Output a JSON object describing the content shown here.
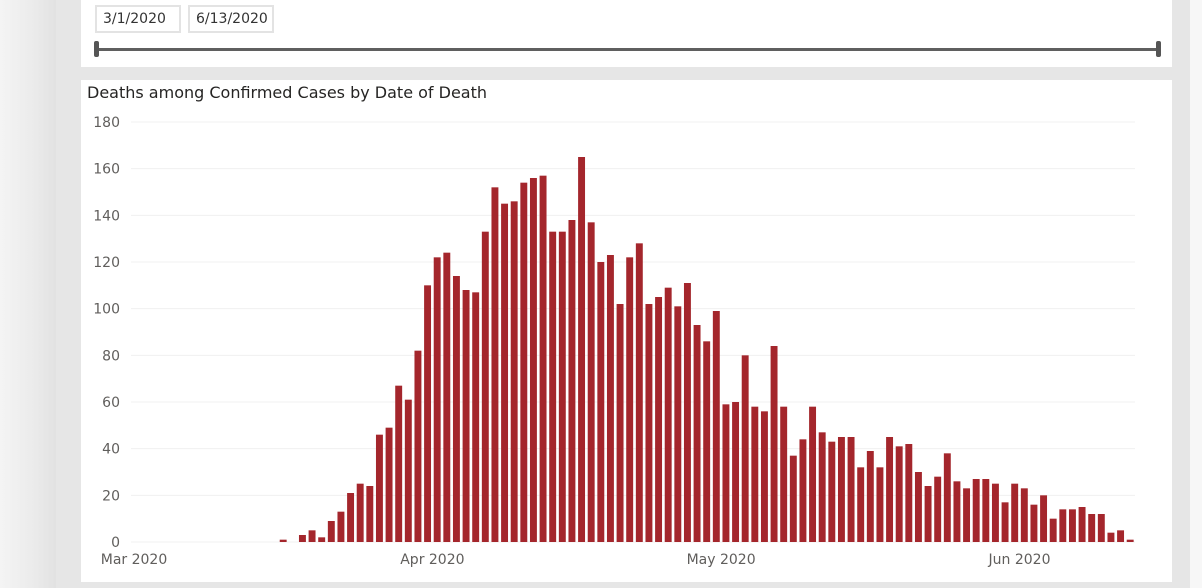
{
  "slicer": {
    "start_date": "3/1/2020",
    "end_date": "6/13/2020"
  },
  "chart_data": {
    "type": "bar",
    "title": "Deaths among Confirmed Cases by Date of Death",
    "xlabel": "",
    "ylabel": "",
    "ylim": [
      0,
      180
    ],
    "yticks": [
      0,
      20,
      40,
      60,
      80,
      100,
      120,
      140,
      160,
      180
    ],
    "x_start": "2020-03-01",
    "x_tick_labels": [
      {
        "label": "Mar 2020",
        "day_index": 0
      },
      {
        "label": "Apr 2020",
        "day_index": 31
      },
      {
        "label": "May 2020",
        "day_index": 61
      },
      {
        "label": "Jun 2020",
        "day_index": 92
      }
    ],
    "bar_color": "#a4262c",
    "values": [
      0,
      0,
      0,
      0,
      0,
      0,
      0,
      0,
      0,
      0,
      0,
      0,
      0,
      0,
      0,
      1,
      0,
      3,
      5,
      2,
      9,
      13,
      21,
      25,
      24,
      46,
      49,
      67,
      61,
      82,
      110,
      122,
      124,
      114,
      108,
      107,
      133,
      152,
      145,
      146,
      154,
      156,
      157,
      133,
      133,
      138,
      165,
      137,
      120,
      123,
      102,
      122,
      128,
      102,
      105,
      109,
      101,
      111,
      93,
      86,
      99,
      59,
      60,
      80,
      58,
      56,
      84,
      58,
      37,
      44,
      58,
      47,
      43,
      45,
      45,
      32,
      39,
      32,
      45,
      41,
      42,
      30,
      24,
      28,
      38,
      26,
      23,
      27,
      27,
      25,
      17,
      25,
      23,
      16,
      20,
      10,
      14,
      14,
      15,
      12,
      12,
      4,
      5,
      1
    ]
  }
}
